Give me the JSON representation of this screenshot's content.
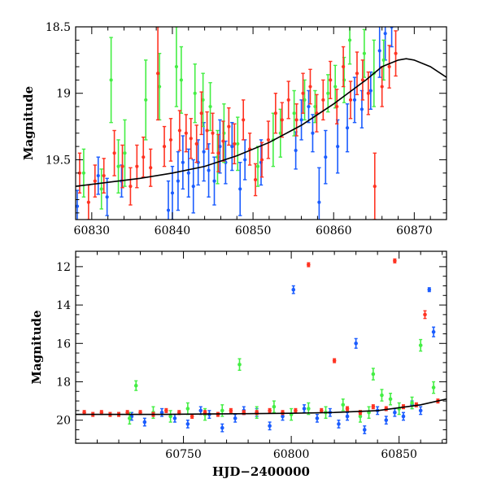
{
  "chart_data": [
    {
      "id": "top",
      "type": "scatter",
      "title": "",
      "xlabel": "",
      "ylabel": "Magnitude",
      "xlim": [
        60828,
        60874
      ],
      "ylim": [
        19.95,
        18.5
      ],
      "y_inverted": true,
      "grid": false,
      "xticks": [
        60830,
        60840,
        60850,
        60860,
        60870
      ],
      "xtick_labels": [
        "60830",
        "60840",
        "60850",
        "60860",
        "60870"
      ],
      "yticks": [
        18.5,
        19,
        19.5
      ],
      "ytick_labels": [
        "18.5",
        "19",
        "19.5"
      ],
      "colors": {
        "blue": "#1a5cff",
        "green": "#44ee44",
        "red": "#ff3322",
        "model": "#000000"
      },
      "model_curve": {
        "x": [
          60828,
          60832,
          60836,
          60840,
          60844,
          60848,
          60852,
          60856,
          60860,
          60864,
          60866,
          60868,
          60869,
          60870,
          60872,
          60874
        ],
        "y": [
          19.7,
          19.67,
          19.64,
          19.6,
          19.55,
          19.47,
          19.37,
          19.24,
          19.08,
          18.9,
          18.8,
          18.75,
          18.74,
          18.75,
          18.8,
          18.88
        ]
      },
      "series": [
        {
          "color": "blue",
          "x": [
            60828.2,
            60830.8,
            60831.9,
            60833.7,
            60839.5,
            60840.0,
            60840.7,
            60841.3,
            60842.0,
            60842.6,
            60843.2,
            60843.9,
            60844.5,
            60845.2,
            60845.9,
            60846.6,
            60847.4,
            60848.4,
            60849.0,
            60851.0,
            60855.3,
            60856.0,
            60856.9,
            60857.4,
            60858.2,
            60859.0,
            60860.5,
            60861.7,
            60862.6,
            60863.5,
            60864.6,
            60865.7,
            60866.4,
            60867.2
          ],
          "y": [
            19.85,
            19.62,
            19.78,
            19.66,
            19.88,
            19.75,
            19.66,
            19.52,
            19.6,
            19.7,
            19.52,
            19.44,
            19.58,
            19.66,
            19.4,
            19.52,
            19.4,
            19.72,
            19.5,
            19.52,
            19.43,
            19.2,
            19.1,
            19.3,
            19.82,
            19.48,
            19.4,
            19.26,
            19.05,
            19.12,
            18.98,
            18.68,
            18.55,
            18.5
          ],
          "err": [
            0.12,
            0.14,
            0.14,
            0.12,
            0.22,
            0.2,
            0.22,
            0.2,
            0.18,
            0.2,
            0.17,
            0.22,
            0.2,
            0.18,
            0.2,
            0.16,
            0.18,
            0.2,
            0.15,
            0.17,
            0.14,
            0.15,
            0.12,
            0.14,
            0.26,
            0.2,
            0.2,
            0.18,
            0.17,
            0.14,
            0.14,
            0.2,
            0.2,
            0.15
          ]
        },
        {
          "color": "green",
          "x": [
            60829.0,
            60831.2,
            60832.4,
            60833.3,
            60834.1,
            60836.7,
            60838.4,
            60840.5,
            60841.1,
            60842.8,
            60843.8,
            60844.7,
            60845.6,
            60846.4,
            60848.1,
            60850.6,
            60852.5,
            60853.4,
            60855.1,
            60856.4,
            60857.7,
            60859.3,
            60860.2,
            60861.3,
            60862.0,
            60863.8,
            60865.0,
            60866.2
          ],
          "y": [
            19.6,
            19.72,
            18.9,
            19.55,
            19.45,
            19.05,
            18.95,
            18.8,
            18.9,
            19.0,
            19.05,
            19.1,
            19.48,
            19.3,
            19.38,
            19.55,
            19.35,
            19.3,
            19.15,
            19.05,
            19.1,
            19.0,
            18.95,
            18.9,
            18.6,
            18.7,
            18.85,
            18.75
          ],
          "err": [
            0.18,
            0.15,
            0.32,
            0.2,
            0.25,
            0.3,
            0.25,
            0.3,
            0.25,
            0.22,
            0.2,
            0.18,
            0.2,
            0.22,
            0.2,
            0.15,
            0.2,
            0.18,
            0.17,
            0.15,
            0.12,
            0.14,
            0.16,
            0.17,
            0.18,
            0.18,
            0.25,
            0.15
          ]
        },
        {
          "color": "red",
          "x": [
            60828.5,
            60829.6,
            60830.4,
            60831.5,
            60832.8,
            60833.8,
            60834.8,
            60835.6,
            60836.4,
            60837.3,
            60838.2,
            60839.0,
            60839.8,
            60840.9,
            60841.7,
            60842.3,
            60843.0,
            60843.6,
            60844.3,
            60845.0,
            60845.7,
            60846.3,
            60847.0,
            60847.7,
            60848.8,
            60849.6,
            60850.3,
            60851.1,
            60851.9,
            60852.8,
            60853.6,
            60854.4,
            60855.4,
            60856.2,
            60857.1,
            60857.9,
            60858.7,
            60859.6,
            60860.4,
            60861.2,
            60862.1,
            60862.9,
            60863.6,
            60864.3,
            60865.1,
            60866.0,
            60866.9,
            60867.7
          ],
          "y": [
            19.6,
            19.82,
            19.66,
            19.62,
            19.45,
            19.55,
            19.7,
            19.55,
            19.48,
            19.56,
            18.85,
            19.4,
            19.35,
            19.28,
            19.3,
            19.34,
            19.38,
            19.15,
            19.28,
            19.3,
            19.45,
            19.36,
            19.25,
            19.38,
            19.2,
            19.42,
            19.65,
            19.5,
            19.35,
            19.15,
            19.2,
            19.05,
            19.2,
            19.0,
            18.95,
            19.15,
            19.05,
            18.9,
            19.1,
            18.8,
            19.05,
            18.85,
            18.9,
            19.0,
            19.7,
            18.95,
            18.8,
            18.7
          ],
          "err": [
            0.15,
            0.13,
            0.12,
            0.13,
            0.17,
            0.16,
            0.14,
            0.16,
            0.15,
            0.14,
            0.35,
            0.15,
            0.16,
            0.15,
            0.14,
            0.15,
            0.14,
            0.16,
            0.14,
            0.15,
            0.14,
            0.15,
            0.14,
            0.15,
            0.15,
            0.12,
            0.12,
            0.13,
            0.14,
            0.15,
            0.13,
            0.14,
            0.12,
            0.15,
            0.13,
            0.14,
            0.15,
            0.14,
            0.13,
            0.15,
            0.14,
            0.16,
            0.15,
            0.16,
            0.25,
            0.15,
            0.16,
            0.17
          ]
        }
      ]
    },
    {
      "id": "bottom",
      "type": "scatter",
      "title": "",
      "xlabel": "HJD−2400000",
      "ylabel": "Magnitude",
      "xlim": [
        60700,
        60872
      ],
      "ylim": [
        21.2,
        11.2
      ],
      "y_inverted": true,
      "grid": false,
      "xticks": [
        60750,
        60800,
        60850
      ],
      "xtick_labels": [
        "60750",
        "60800",
        "60850"
      ],
      "yticks": [
        12,
        14,
        16,
        18,
        20
      ],
      "ytick_labels": [
        "12",
        "14",
        "16",
        "18",
        "20"
      ],
      "colors": {
        "blue": "#1a5cff",
        "green": "#44ee44",
        "red": "#ff3322",
        "model": "#000000"
      },
      "model_curve": {
        "x": [
          60700,
          60720,
          60740,
          60760,
          60780,
          60800,
          60820,
          60840,
          60860,
          60872
        ],
        "y": [
          19.7,
          19.7,
          19.7,
          19.68,
          19.66,
          19.64,
          19.6,
          19.5,
          19.2,
          18.9
        ]
      },
      "series": [
        {
          "color": "blue",
          "x": [
            60726,
            60732,
            60740,
            60746,
            60752,
            60758,
            60762,
            60768,
            60774,
            60778,
            60784,
            60790,
            60796,
            60801,
            60806,
            60812,
            60818,
            60822,
            60826,
            60830,
            60834,
            60840,
            60844,
            60848,
            60852,
            60856,
            60860,
            60864,
            60866
          ],
          "y": [
            19.8,
            20.1,
            19.6,
            19.9,
            20.2,
            19.5,
            19.7,
            20.4,
            19.9,
            19.5,
            19.6,
            20.3,
            19.8,
            13.2,
            19.4,
            19.9,
            19.6,
            20.2,
            19.8,
            16.0,
            20.5,
            19.5,
            20.0,
            19.6,
            19.8,
            19.2,
            19.5,
            13.2,
            15.4
          ],
          "err": [
            0.2,
            0.2,
            0.2,
            0.2,
            0.2,
            0.2,
            0.2,
            0.2,
            0.2,
            0.2,
            0.2,
            0.2,
            0.2,
            0.2,
            0.2,
            0.2,
            0.2,
            0.2,
            0.2,
            0.25,
            0.2,
            0.2,
            0.2,
            0.2,
            0.2,
            0.2,
            0.2,
            0.1,
            0.25
          ]
        },
        {
          "color": "green",
          "x": [
            60725,
            60728,
            60736,
            60744,
            60752,
            60760,
            60768,
            60776,
            60784,
            60792,
            60800,
            60808,
            60816,
            60824,
            60832,
            60836,
            60838,
            60842,
            60846,
            60850,
            60856,
            60860,
            60866
          ],
          "y": [
            19.9,
            18.2,
            19.6,
            19.8,
            19.4,
            19.7,
            19.5,
            17.1,
            19.6,
            19.3,
            19.7,
            19.4,
            19.6,
            19.2,
            19.8,
            19.6,
            17.6,
            18.7,
            18.9,
            19.4,
            19.1,
            16.1,
            18.3
          ],
          "err": [
            0.3,
            0.25,
            0.3,
            0.3,
            0.3,
            0.3,
            0.3,
            0.3,
            0.3,
            0.3,
            0.3,
            0.3,
            0.3,
            0.3,
            0.3,
            0.3,
            0.3,
            0.3,
            0.3,
            0.3,
            0.3,
            0.3,
            0.3
          ]
        },
        {
          "color": "red",
          "x": [
            60704,
            60708,
            60712,
            60716,
            60720,
            60724,
            60730,
            60736,
            60742,
            60748,
            60754,
            60760,
            60766,
            60772,
            60778,
            60784,
            60790,
            60796,
            60802,
            60808,
            60814,
            60820,
            60826,
            60832,
            60838,
            60844,
            60848,
            60852,
            60858,
            60862,
            60868
          ],
          "y": [
            19.6,
            19.7,
            19.6,
            19.7,
            19.7,
            19.6,
            19.6,
            19.7,
            19.5,
            19.6,
            19.8,
            19.6,
            19.7,
            19.5,
            19.6,
            19.6,
            19.5,
            19.6,
            19.5,
            11.9,
            19.5,
            16.9,
            19.4,
            19.6,
            19.3,
            19.4,
            11.7,
            19.3,
            19.2,
            14.5,
            19.0
          ],
          "err": [
            0.1,
            0.1,
            0.1,
            0.1,
            0.1,
            0.1,
            0.1,
            0.1,
            0.1,
            0.1,
            0.1,
            0.1,
            0.1,
            0.1,
            0.1,
            0.1,
            0.1,
            0.1,
            0.1,
            0.1,
            0.1,
            0.1,
            0.1,
            0.1,
            0.1,
            0.1,
            0.1,
            0.1,
            0.1,
            0.2,
            0.1
          ]
        }
      ]
    }
  ]
}
